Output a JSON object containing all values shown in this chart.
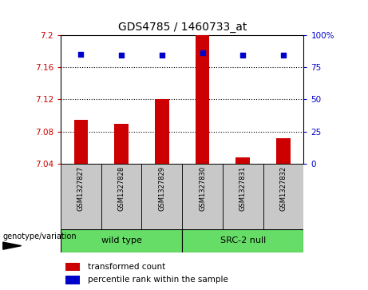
{
  "title": "GDS4785 / 1460733_at",
  "samples": [
    "GSM1327827",
    "GSM1327828",
    "GSM1327829",
    "GSM1327830",
    "GSM1327831",
    "GSM1327832"
  ],
  "bar_values": [
    7.095,
    7.09,
    7.12,
    7.2,
    7.048,
    7.072
  ],
  "percentile_values": [
    85,
    84,
    84,
    86,
    84,
    84
  ],
  "ylim_left": [
    7.04,
    7.2
  ],
  "ylim_right": [
    0,
    100
  ],
  "yticks_left": [
    7.04,
    7.08,
    7.12,
    7.16,
    7.2
  ],
  "yticks_right": [
    0,
    25,
    50,
    75,
    100
  ],
  "ytick_right_labels": [
    "0",
    "25",
    "50",
    "75",
    "100%"
  ],
  "bar_color": "#CC0000",
  "dot_color": "#0000CC",
  "bg_color": "#FFFFFF",
  "label_color_left": "#CC0000",
  "label_color_right": "#0000CC",
  "grid_ticks": [
    7.08,
    7.12,
    7.16
  ],
  "legend_red_label": "transformed count",
  "legend_blue_label": "percentile rank within the sample",
  "genotype_label": "genotype/variation",
  "bar_base": 7.04,
  "group_wt": "wild type",
  "group_src": "SRC-2 null",
  "cell_color": "#C8C8C8",
  "group_color": "#66DD66"
}
